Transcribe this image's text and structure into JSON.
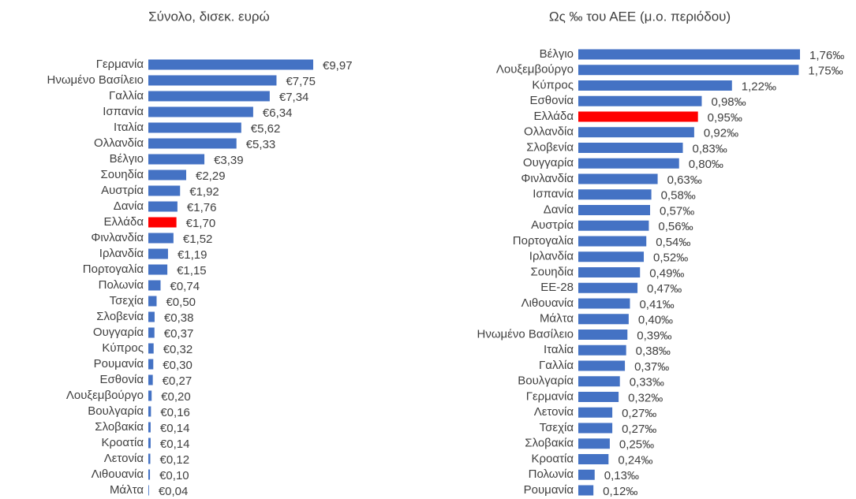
{
  "chart_data": [
    {
      "type": "hbar",
      "title": "Σύνολο, δισεκ. ευρώ",
      "categories": [
        "Γερμανία",
        "Ηνωμένο Βασίλειο",
        "Γαλλία",
        "Ισπανία",
        "Ιταλία",
        "Ολλανδία",
        "Βέλγιο",
        "Σουηδία",
        "Αυστρία",
        "Δανία",
        "Ελλάδα",
        "Φινλανδία",
        "Ιρλανδία",
        "Πορτογαλία",
        "Πολωνία",
        "Τσεχία",
        "Σλοβενία",
        "Ουγγαρία",
        "Κύπρος",
        "Ρουμανία",
        "Εσθονία",
        "Λουξεμβούργο",
        "Βουλγαρία",
        "Σλοβακία",
        "Κροατία",
        "Λετονία",
        "Λιθουανία",
        "Μάλτα"
      ],
      "values": [
        9.97,
        7.75,
        7.34,
        6.34,
        5.62,
        5.33,
        3.39,
        2.29,
        1.92,
        1.76,
        1.7,
        1.52,
        1.19,
        1.15,
        0.74,
        0.5,
        0.38,
        0.37,
        0.32,
        0.3,
        0.27,
        0.2,
        0.16,
        0.14,
        0.14,
        0.12,
        0.1,
        0.04
      ],
      "value_labels": [
        "€9,97",
        "€7,75",
        "€7,34",
        "€6,34",
        "€5,62",
        "€5,33",
        "€3,39",
        "€2,29",
        "€1,92",
        "€1,76",
        "€1,70",
        "€1,52",
        "€1,19",
        "€1,15",
        "€0,74",
        "€0,50",
        "€0,38",
        "€0,37",
        "€0,32",
        "€0,30",
        "€0,27",
        "€0,20",
        "€0,16",
        "€0,14",
        "€0,14",
        "€0,12",
        "€0,10",
        "€0,04"
      ],
      "colors": [
        "#4472c4",
        "#4472c4",
        "#4472c4",
        "#4472c4",
        "#4472c4",
        "#4472c4",
        "#4472c4",
        "#4472c4",
        "#4472c4",
        "#4472c4",
        "#ff0000",
        "#4472c4",
        "#4472c4",
        "#4472c4",
        "#4472c4",
        "#4472c4",
        "#4472c4",
        "#4472c4",
        "#4472c4",
        "#4472c4",
        "#4472c4",
        "#4472c4",
        "#4472c4",
        "#4472c4",
        "#4472c4",
        "#4472c4",
        "#4472c4",
        "#4472c4"
      ]
    },
    {
      "type": "hbar",
      "title": "Ως ‰ του ΑΕΕ (μ.ο. περιόδου)",
      "categories": [
        "Βέλγιο",
        "Λουξεμβούργο",
        "Κύπρος",
        "Εσθονία",
        "Ελλάδα",
        "Ολλανδία",
        "Σλοβενία",
        "Ουγγαρία",
        "Φινλανδία",
        "Ισπανία",
        "Δανία",
        "Αυστρία",
        "Πορτογαλία",
        "Ιρλανδία",
        "Σουηδία",
        "ΕΕ-28",
        "Λιθουανία",
        "Μάλτα",
        "Ηνωμένο Βασίλειο",
        "Ιταλία",
        "Γαλλία",
        "Βουλγαρία",
        "Γερμανία",
        "Λετονία",
        "Τσεχία",
        "Σλοβακία",
        "Κροατία",
        "Πολωνία",
        "Ρουμανία"
      ],
      "values": [
        1.76,
        1.75,
        1.22,
        0.98,
        0.95,
        0.92,
        0.83,
        0.8,
        0.63,
        0.58,
        0.57,
        0.56,
        0.54,
        0.52,
        0.49,
        0.47,
        0.41,
        0.4,
        0.39,
        0.38,
        0.37,
        0.33,
        0.32,
        0.27,
        0.27,
        0.25,
        0.24,
        0.13,
        0.12
      ],
      "value_labels": [
        "1,76‰",
        "1,75‰",
        "1,22‰",
        "0,98‰",
        "0,95‰",
        "0,92‰",
        "0,83‰",
        "0,80‰",
        "0,63‰",
        "0,58‰",
        "0,57‰",
        "0,56‰",
        "0,54‰",
        "0,52‰",
        "0,49‰",
        "0,47‰",
        "0,41‰",
        "0,40‰",
        "0,39‰",
        "0,38‰",
        "0,37‰",
        "0,33‰",
        "0,32‰",
        "0,27‰",
        "0,27‰",
        "0,25‰",
        "0,24‰",
        "0,13‰",
        "0,12‰"
      ],
      "colors": [
        "#4472c4",
        "#4472c4",
        "#4472c4",
        "#4472c4",
        "#ff0000",
        "#4472c4",
        "#4472c4",
        "#4472c4",
        "#4472c4",
        "#4472c4",
        "#4472c4",
        "#4472c4",
        "#4472c4",
        "#4472c4",
        "#4472c4",
        "#4472c4",
        "#4472c4",
        "#4472c4",
        "#4472c4",
        "#4472c4",
        "#4472c4",
        "#4472c4",
        "#4472c4",
        "#4472c4",
        "#4472c4",
        "#4472c4",
        "#4472c4",
        "#4472c4",
        "#4472c4"
      ]
    }
  ]
}
